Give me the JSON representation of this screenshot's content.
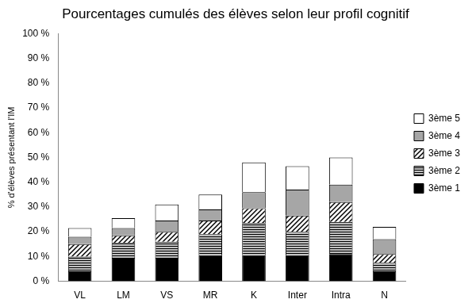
{
  "chart_data": {
    "type": "bar",
    "title": "Pourcentages cumulés des élèves selon leur profil cognitif",
    "y_label": "% d'élèves présentant l'IM",
    "categories": [
      "VL",
      "LM",
      "VS",
      "MR",
      "K",
      "Inter",
      "Intra",
      "N"
    ],
    "series": [
      {
        "name": "3ème 1",
        "color": "#000000",
        "values": [
          4,
          9.5,
          9.5,
          10.5,
          10.5,
          10.5,
          11,
          4
        ]
      },
      {
        "name": "3ème 2",
        "color": "#ffffff",
        "line_style": "horizontal",
        "values": [
          6,
          6,
          6.5,
          8.5,
          13,
          9.5,
          13,
          3.5
        ]
      },
      {
        "name": "3ème 3",
        "color": "#ffffff",
        "line_style": "diagonal",
        "values": [
          5,
          3,
          4,
          5.5,
          6,
          6.5,
          8,
          3.5
        ]
      },
      {
        "name": "3ème 4",
        "color": "#a6a6a6",
        "values": [
          3,
          3,
          4.5,
          4.5,
          6.5,
          10.5,
          7,
          6
        ]
      },
      {
        "name": "3ème 5",
        "color": "#ffffff",
        "values": [
          3.5,
          4,
          6.5,
          6,
          12,
          9.5,
          11,
          5
        ]
      }
    ],
    "stacked": true,
    "legend": "right",
    "grid": false,
    "ylim": [
      0,
      100
    ],
    "yticks": [
      {
        "value": 0,
        "label": "0 %"
      },
      {
        "value": 10,
        "label": "10 %"
      },
      {
        "value": 20,
        "label": "20 %"
      },
      {
        "value": 30,
        "label": "30 %"
      },
      {
        "value": 40,
        "label": "40 %"
      },
      {
        "value": 50,
        "label": "50 %"
      },
      {
        "value": 60,
        "label": "60 %"
      },
      {
        "value": 70,
        "label": "70 %"
      },
      {
        "value": 80,
        "label": "80 %"
      },
      {
        "value": 90,
        "label": "90 %"
      },
      {
        "value": 100,
        "label": "100 %"
      }
    ]
  }
}
